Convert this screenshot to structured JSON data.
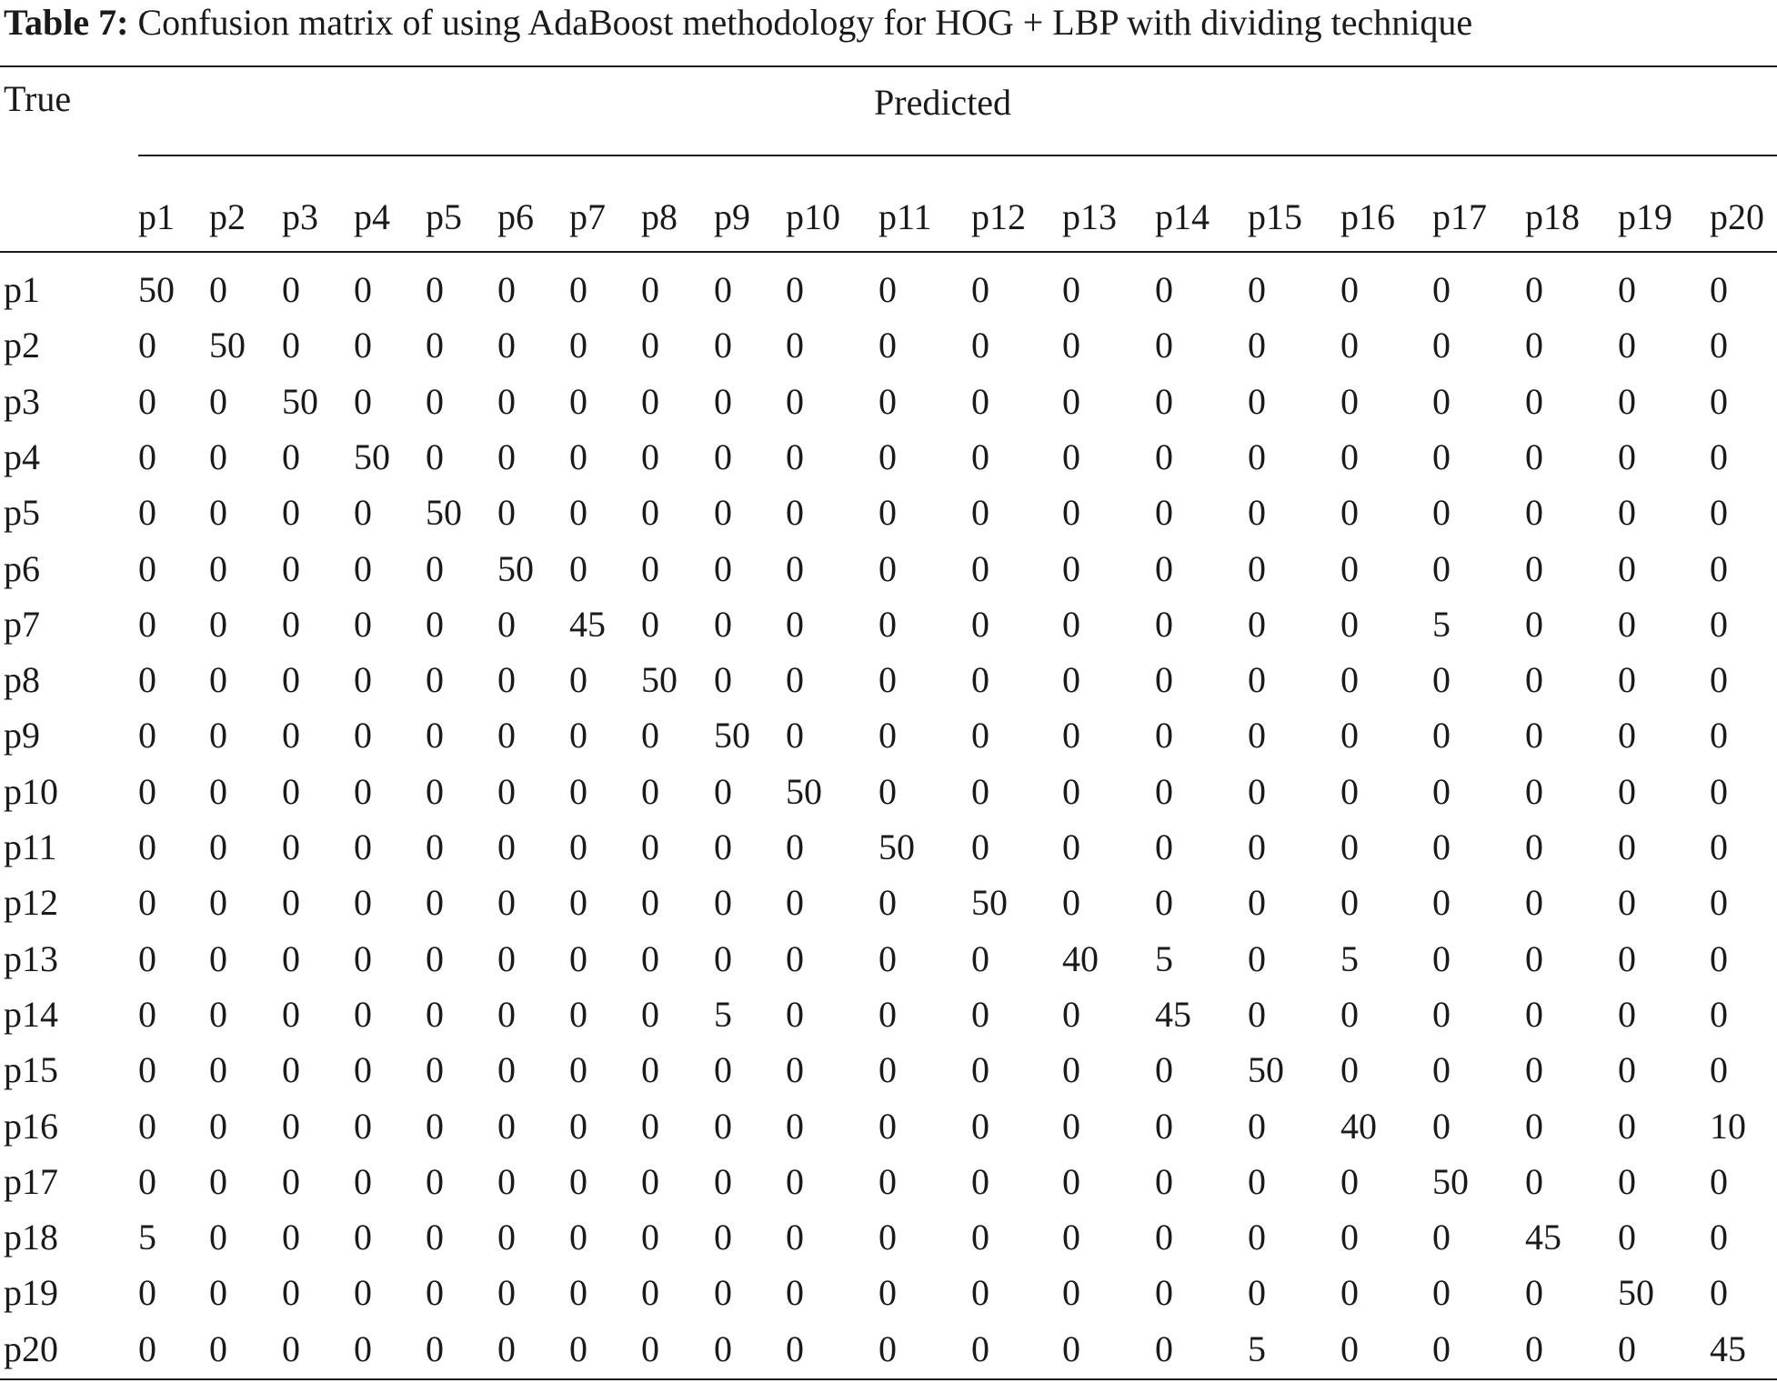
{
  "caption": {
    "label": "Table 7:",
    "text": "Confusion matrix of using AdaBoost methodology for HOG + LBP with dividing technique"
  },
  "stub_header": "True",
  "group_header": "Predicted",
  "columns": [
    "p1",
    "p2",
    "p3",
    "p4",
    "p5",
    "p6",
    "p7",
    "p8",
    "p9",
    "p10",
    "p11",
    "p12",
    "p13",
    "p14",
    "p15",
    "p16",
    "p17",
    "p18",
    "p19",
    "p20"
  ],
  "rows": [
    {
      "label": "p1",
      "values": [
        "50",
        "0",
        "0",
        "0",
        "0",
        "0",
        "0",
        "0",
        "0",
        "0",
        "0",
        "0",
        "0",
        "0",
        "0",
        "0",
        "0",
        "0",
        "0",
        "0"
      ]
    },
    {
      "label": "p2",
      "values": [
        "0",
        "50",
        "0",
        "0",
        "0",
        "0",
        "0",
        "0",
        "0",
        "0",
        "0",
        "0",
        "0",
        "0",
        "0",
        "0",
        "0",
        "0",
        "0",
        "0"
      ]
    },
    {
      "label": "p3",
      "values": [
        "0",
        "0",
        "50",
        "0",
        "0",
        "0",
        "0",
        "0",
        "0",
        "0",
        "0",
        "0",
        "0",
        "0",
        "0",
        "0",
        "0",
        "0",
        "0",
        "0"
      ]
    },
    {
      "label": "p4",
      "values": [
        "0",
        "0",
        "0",
        "50",
        "0",
        "0",
        "0",
        "0",
        "0",
        "0",
        "0",
        "0",
        "0",
        "0",
        "0",
        "0",
        "0",
        "0",
        "0",
        "0"
      ]
    },
    {
      "label": "p5",
      "values": [
        "0",
        "0",
        "0",
        "0",
        "50",
        "0",
        "0",
        "0",
        "0",
        "0",
        "0",
        "0",
        "0",
        "0",
        "0",
        "0",
        "0",
        "0",
        "0",
        "0"
      ]
    },
    {
      "label": "p6",
      "values": [
        "0",
        "0",
        "0",
        "0",
        "0",
        "50",
        "0",
        "0",
        "0",
        "0",
        "0",
        "0",
        "0",
        "0",
        "0",
        "0",
        "0",
        "0",
        "0",
        "0"
      ]
    },
    {
      "label": "p7",
      "values": [
        "0",
        "0",
        "0",
        "0",
        "0",
        "0",
        "45",
        "0",
        "0",
        "0",
        "0",
        "0",
        "0",
        "0",
        "0",
        "0",
        "5",
        "0",
        "0",
        "0"
      ]
    },
    {
      "label": "p8",
      "values": [
        "0",
        "0",
        "0",
        "0",
        "0",
        "0",
        "0",
        "50",
        "0",
        "0",
        "0",
        "0",
        "0",
        "0",
        "0",
        "0",
        "0",
        "0",
        "0",
        "0"
      ]
    },
    {
      "label": "p9",
      "values": [
        "0",
        "0",
        "0",
        "0",
        "0",
        "0",
        "0",
        "0",
        "50",
        "0",
        "0",
        "0",
        "0",
        "0",
        "0",
        "0",
        "0",
        "0",
        "0",
        "0"
      ]
    },
    {
      "label": "p10",
      "values": [
        "0",
        "0",
        "0",
        "0",
        "0",
        "0",
        "0",
        "0",
        "0",
        "50",
        "0",
        "0",
        "0",
        "0",
        "0",
        "0",
        "0",
        "0",
        "0",
        "0"
      ]
    },
    {
      "label": "p11",
      "values": [
        "0",
        "0",
        "0",
        "0",
        "0",
        "0",
        "0",
        "0",
        "0",
        "0",
        "50",
        "0",
        "0",
        "0",
        "0",
        "0",
        "0",
        "0",
        "0",
        "0"
      ]
    },
    {
      "label": "p12",
      "values": [
        "0",
        "0",
        "0",
        "0",
        "0",
        "0",
        "0",
        "0",
        "0",
        "0",
        "0",
        "50",
        "0",
        "0",
        "0",
        "0",
        "0",
        "0",
        "0",
        "0"
      ]
    },
    {
      "label": "p13",
      "values": [
        "0",
        "0",
        "0",
        "0",
        "0",
        "0",
        "0",
        "0",
        "0",
        "0",
        "0",
        "0",
        "40",
        "5",
        "0",
        "5",
        "0",
        "0",
        "0",
        "0"
      ]
    },
    {
      "label": "p14",
      "values": [
        "0",
        "0",
        "0",
        "0",
        "0",
        "0",
        "0",
        "0",
        "5",
        "0",
        "0",
        "0",
        "0",
        "45",
        "0",
        "0",
        "0",
        "0",
        "0",
        "0"
      ]
    },
    {
      "label": "p15",
      "values": [
        "0",
        "0",
        "0",
        "0",
        "0",
        "0",
        "0",
        "0",
        "0",
        "0",
        "0",
        "0",
        "0",
        "0",
        "50",
        "0",
        "0",
        "0",
        "0",
        "0"
      ]
    },
    {
      "label": "p16",
      "values": [
        "0",
        "0",
        "0",
        "0",
        "0",
        "0",
        "0",
        "0",
        "0",
        "0",
        "0",
        "0",
        "0",
        "0",
        "0",
        "40",
        "0",
        "0",
        "0",
        "10"
      ]
    },
    {
      "label": "p17",
      "values": [
        "0",
        "0",
        "0",
        "0",
        "0",
        "0",
        "0",
        "0",
        "0",
        "0",
        "0",
        "0",
        "0",
        "0",
        "0",
        "0",
        "50",
        "0",
        "0",
        "0"
      ]
    },
    {
      "label": "p18",
      "values": [
        "5",
        "0",
        "0",
        "0",
        "0",
        "0",
        "0",
        "0",
        "0",
        "0",
        "0",
        "0",
        "0",
        "0",
        "0",
        "0",
        "0",
        "45",
        "0",
        "0"
      ]
    },
    {
      "label": "p19",
      "values": [
        "0",
        "0",
        "0",
        "0",
        "0",
        "0",
        "0",
        "0",
        "0",
        "0",
        "0",
        "0",
        "0",
        "0",
        "0",
        "0",
        "0",
        "0",
        "50",
        "0"
      ]
    },
    {
      "label": "p20",
      "values": [
        "0",
        "0",
        "0",
        "0",
        "0",
        "0",
        "0",
        "0",
        "0",
        "0",
        "0",
        "0",
        "0",
        "0",
        "5",
        "0",
        "0",
        "0",
        "0",
        "45"
      ]
    }
  ]
}
